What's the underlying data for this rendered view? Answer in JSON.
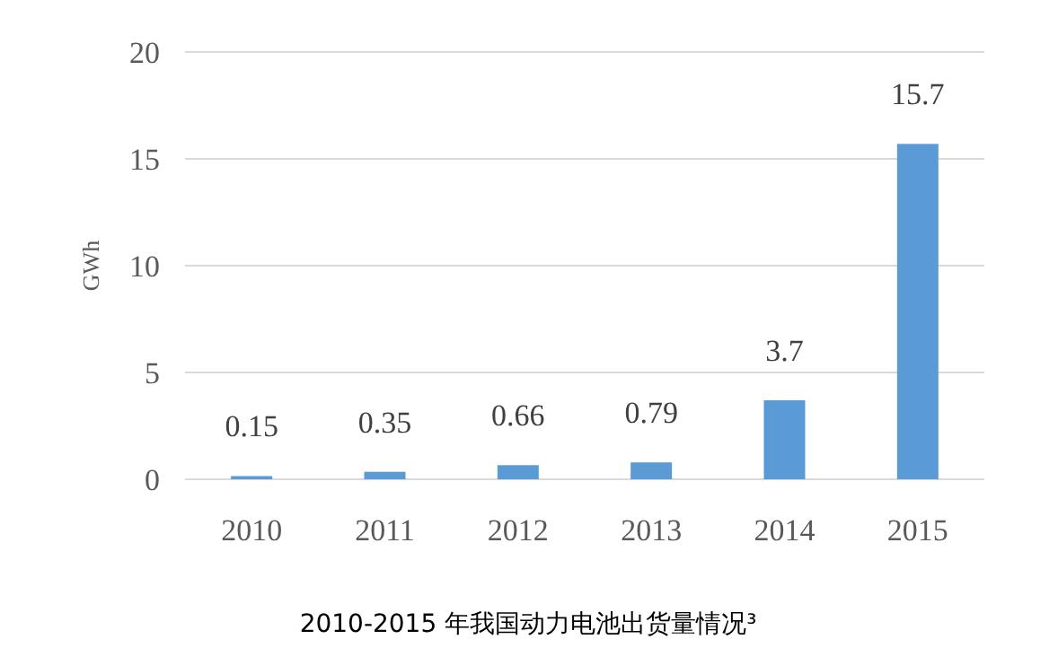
{
  "chart_data": {
    "type": "bar",
    "title": "2010-2015 年我国动力电池出货量情况³",
    "ylabel": "GWh",
    "categories": [
      "2010",
      "2011",
      "2012",
      "2013",
      "2014",
      "2015"
    ],
    "values": [
      0.15,
      0.35,
      0.66,
      0.79,
      3.7,
      15.7
    ],
    "color": "#5b9bd5",
    "ylim": [
      0,
      20
    ],
    "yticks": [
      0,
      5,
      10,
      15,
      20
    ],
    "grid": "y",
    "data_labels": true
  }
}
